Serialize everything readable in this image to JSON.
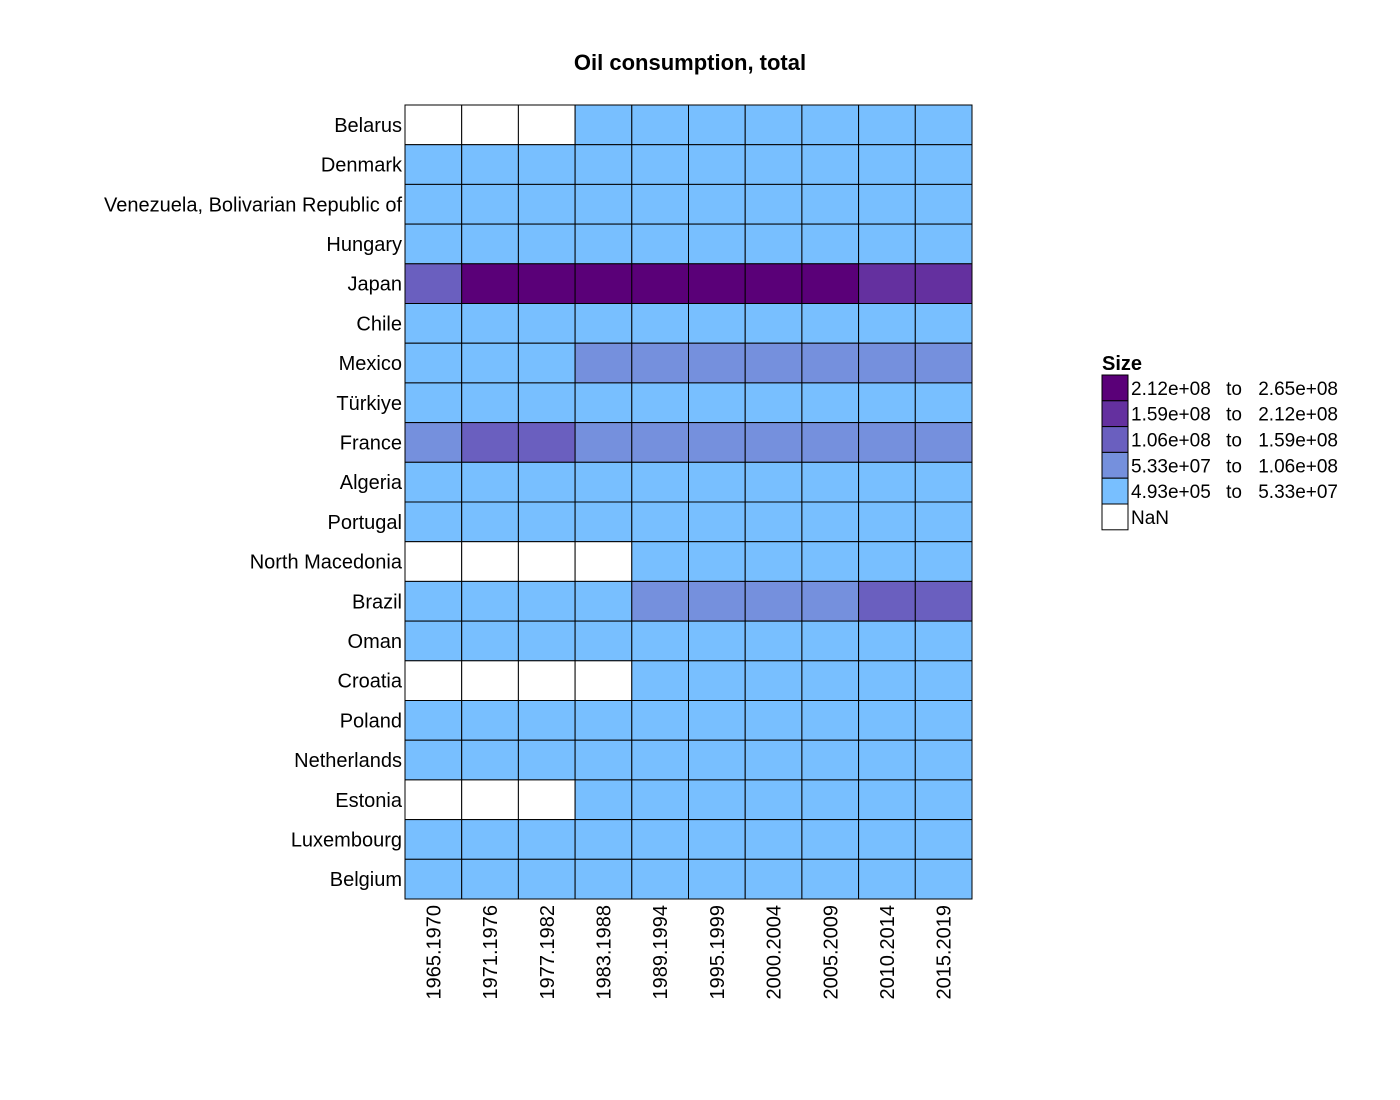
{
  "chart_data": {
    "type": "heatmap",
    "title": "Oil consumption, total",
    "xlabel": "",
    "ylabel": "",
    "grid": false,
    "legend_position": "right",
    "columns": [
      "1965.1970",
      "1971.1976",
      "1977.1982",
      "1983.1988",
      "1989.1994",
      "1995.1999",
      "2000.2004",
      "2005.2009",
      "2010.2014",
      "2015.2019"
    ],
    "rows": [
      "Belarus",
      "Denmark",
      "Venezuela, Bolivarian Republic of",
      "Hungary",
      "Japan",
      "Chile",
      "Mexico",
      "Türkiye",
      "France",
      "Algeria",
      "Portugal",
      "North Macedonia",
      "Brazil",
      "Oman",
      "Croatia",
      "Poland",
      "Netherlands",
      "Estonia",
      "Luxembourg",
      "Belgium"
    ],
    "bin_index": [
      [
        -1,
        -1,
        -1,
        0,
        0,
        0,
        0,
        0,
        0,
        0
      ],
      [
        0,
        0,
        0,
        0,
        0,
        0,
        0,
        0,
        0,
        0
      ],
      [
        0,
        0,
        0,
        0,
        0,
        0,
        0,
        0,
        0,
        0
      ],
      [
        0,
        0,
        0,
        0,
        0,
        0,
        0,
        0,
        0,
        0
      ],
      [
        2,
        4,
        4,
        4,
        4,
        4,
        4,
        4,
        3,
        3
      ],
      [
        0,
        0,
        0,
        0,
        0,
        0,
        0,
        0,
        0,
        0
      ],
      [
        0,
        0,
        0,
        1,
        1,
        1,
        1,
        1,
        1,
        1
      ],
      [
        0,
        0,
        0,
        0,
        0,
        0,
        0,
        0,
        0,
        0
      ],
      [
        1,
        2,
        2,
        1,
        1,
        1,
        1,
        1,
        1,
        1
      ],
      [
        0,
        0,
        0,
        0,
        0,
        0,
        0,
        0,
        0,
        0
      ],
      [
        0,
        0,
        0,
        0,
        0,
        0,
        0,
        0,
        0,
        0
      ],
      [
        -1,
        -1,
        -1,
        -1,
        0,
        0,
        0,
        0,
        0,
        0
      ],
      [
        0,
        0,
        0,
        0,
        1,
        1,
        1,
        1,
        2,
        2
      ],
      [
        0,
        0,
        0,
        0,
        0,
        0,
        0,
        0,
        0,
        0
      ],
      [
        -1,
        -1,
        -1,
        -1,
        0,
        0,
        0,
        0,
        0,
        0
      ],
      [
        0,
        0,
        0,
        0,
        0,
        0,
        0,
        0,
        0,
        0
      ],
      [
        0,
        0,
        0,
        0,
        0,
        0,
        0,
        0,
        0,
        0
      ],
      [
        -1,
        -1,
        -1,
        0,
        0,
        0,
        0,
        0,
        0,
        0
      ],
      [
        0,
        0,
        0,
        0,
        0,
        0,
        0,
        0,
        0,
        0
      ],
      [
        0,
        0,
        0,
        0,
        0,
        0,
        0,
        0,
        0,
        0
      ]
    ],
    "legend": {
      "title": "Size",
      "bins": [
        {
          "low": "4.93e+05",
          "high": "5.33e+07",
          "color": "#78bfff"
        },
        {
          "low": "5.33e+07",
          "high": "1.06e+08",
          "color": "#7590dd"
        },
        {
          "low": "1.06e+08",
          "high": "1.59e+08",
          "color": "#6a5fbf"
        },
        {
          "low": "1.59e+08",
          "high": "2.12e+08",
          "color": "#64309f"
        },
        {
          "low": "2.12e+08",
          "high": "2.65e+08",
          "color": "#5a0078"
        }
      ],
      "nan": {
        "label": "NaN",
        "color": "#ffffff"
      },
      "separator": "to"
    }
  }
}
